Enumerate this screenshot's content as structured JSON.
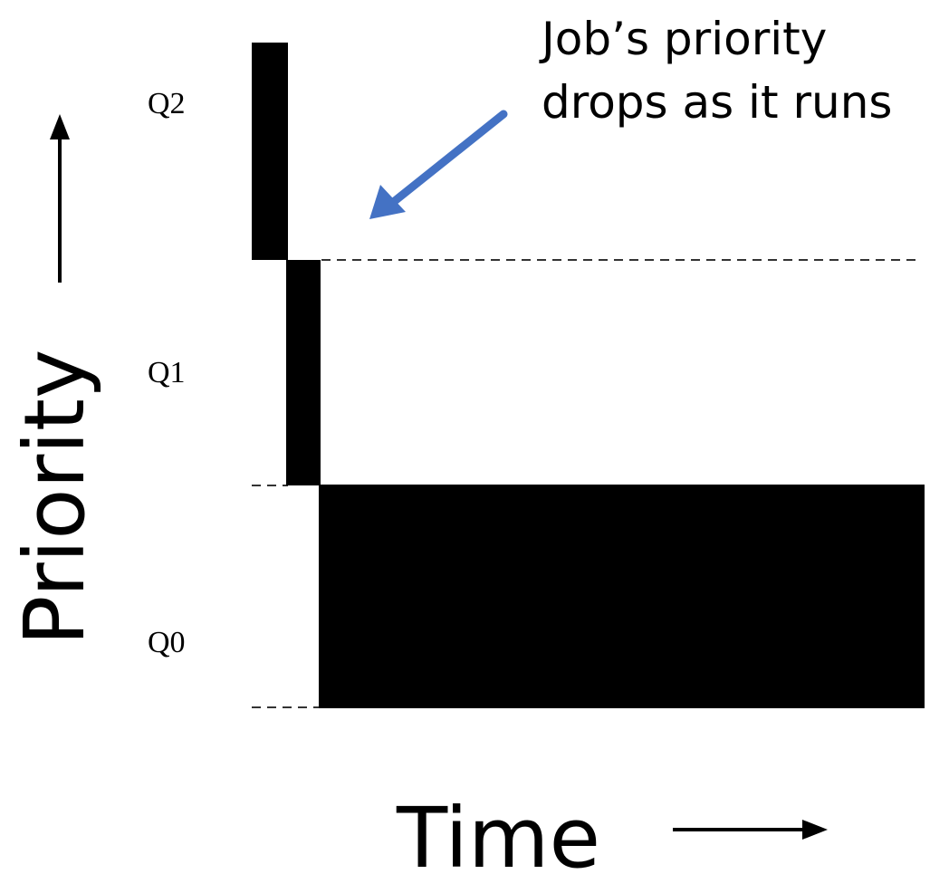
{
  "queues": [
    {
      "label": "Q2"
    },
    {
      "label": "Q1"
    },
    {
      "label": "Q0"
    }
  ],
  "axes": {
    "y_title": "Priority",
    "x_title": "Time"
  },
  "annotation": {
    "line1": "Job’s priority",
    "line2": "drops as it runs"
  },
  "colors": {
    "bar": "#000000",
    "dashed_line": "#333333",
    "callout_arrow": "#4472C4"
  }
}
